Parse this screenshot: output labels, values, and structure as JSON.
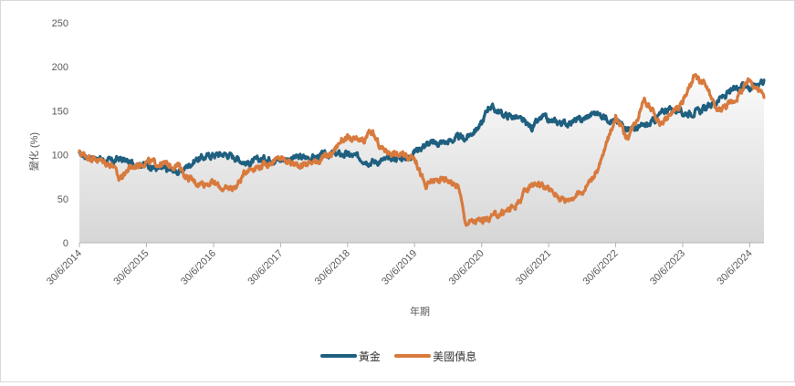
{
  "chart_data": {
    "type": "line",
    "xlabel": "年期",
    "ylabel": "變化 (%)",
    "ylim": [
      0,
      250
    ],
    "yticks": [
      0,
      50,
      100,
      150,
      200,
      250
    ],
    "x_range": [
      "2014-06-30",
      "2024-09-15"
    ],
    "xticks": [
      "30/6/2014",
      "30/6/2015",
      "30/6/2016",
      "30/6/2017",
      "30/6/2018",
      "30/6/2019",
      "30/6/2020",
      "30/6/2021",
      "30/6/2022",
      "30/6/2023",
      "30/6/2024"
    ],
    "grid": false,
    "background_area": "gradient fill under upper envelope",
    "legend_position": "bottom-center",
    "series": [
      {
        "name": "黃金",
        "color": "#1f5f7f",
        "x": [
          "2014-06-30",
          "2014-09-30",
          "2014-12-31",
          "2015-01-31",
          "2015-03-31",
          "2015-06-30",
          "2015-08-31",
          "2015-11-30",
          "2015-12-31",
          "2016-01-31",
          "2016-03-31",
          "2016-06-30",
          "2016-08-31",
          "2016-10-31",
          "2016-12-31",
          "2017-03-31",
          "2017-06-30",
          "2017-09-30",
          "2017-12-31",
          "2018-03-31",
          "2018-06-30",
          "2018-08-31",
          "2018-10-31",
          "2018-12-31",
          "2019-03-31",
          "2019-05-31",
          "2019-06-30",
          "2019-08-31",
          "2019-12-31",
          "2020-02-29",
          "2020-03-31",
          "2020-06-30",
          "2020-08-07",
          "2020-10-31",
          "2020-12-31",
          "2021-03-31",
          "2021-05-31",
          "2021-06-30",
          "2021-09-30",
          "2021-12-31",
          "2022-03-08",
          "2022-06-30",
          "2022-09-30",
          "2022-12-31",
          "2023-03-31",
          "2023-05-31",
          "2023-06-30",
          "2023-09-30",
          "2023-12-31",
          "2024-03-31",
          "2024-05-31",
          "2024-06-30",
          "2024-08-31",
          "2024-09-15"
        ],
        "values": [
          100,
          96,
          92,
          96,
          91,
          89,
          84,
          82,
          80,
          86,
          95,
          100,
          101,
          97,
          90,
          96,
          94,
          97,
          97,
          101,
          100,
          97,
          92,
          93,
          97,
          97,
          104,
          112,
          115,
          120,
          118,
          135,
          156,
          145,
          143,
          131,
          143,
          138,
          136,
          140,
          148,
          138,
          129,
          134,
          152,
          151,
          147,
          149,
          161,
          173,
          183,
          175,
          184,
          185
        ]
      },
      {
        "name": "美國債息",
        "color": "#d87a3d",
        "x": [
          "2014-06-30",
          "2014-09-30",
          "2014-12-31",
          "2015-01-31",
          "2015-03-31",
          "2015-06-30",
          "2015-08-31",
          "2015-12-31",
          "2016-01-31",
          "2016-03-31",
          "2016-06-30",
          "2016-08-31",
          "2016-10-31",
          "2016-12-31",
          "2017-03-31",
          "2017-06-30",
          "2017-09-30",
          "2017-12-31",
          "2018-03-31",
          "2018-05-31",
          "2018-06-30",
          "2018-09-30",
          "2018-10-31",
          "2018-12-31",
          "2019-03-31",
          "2019-06-30",
          "2019-08-31",
          "2019-09-30",
          "2019-12-31",
          "2020-02-29",
          "2020-03-31",
          "2020-06-30",
          "2020-08-07",
          "2020-10-31",
          "2020-12-31",
          "2021-03-31",
          "2021-05-31",
          "2021-06-30",
          "2021-09-30",
          "2021-12-31",
          "2022-03-31",
          "2022-06-30",
          "2022-08-31",
          "2022-10-31",
          "2022-11-30",
          "2023-02-28",
          "2023-03-31",
          "2023-06-30",
          "2023-08-31",
          "2023-10-31",
          "2023-12-31",
          "2024-03-31",
          "2024-06-30",
          "2024-08-31",
          "2024-09-15"
        ],
        "values": [
          102,
          95,
          88,
          72,
          85,
          92,
          90,
          87,
          75,
          68,
          68,
          60,
          64,
          84,
          88,
          96,
          88,
          92,
          100,
          118,
          118,
          114,
          128,
          107,
          100,
          98,
          62,
          70,
          72,
          62,
          23,
          25,
          28,
          35,
          42,
          68,
          65,
          60,
          48,
          58,
          85,
          145,
          118,
          145,
          165,
          135,
          140,
          160,
          188,
          180,
          150,
          160,
          185,
          170,
          165
        ]
      }
    ]
  }
}
